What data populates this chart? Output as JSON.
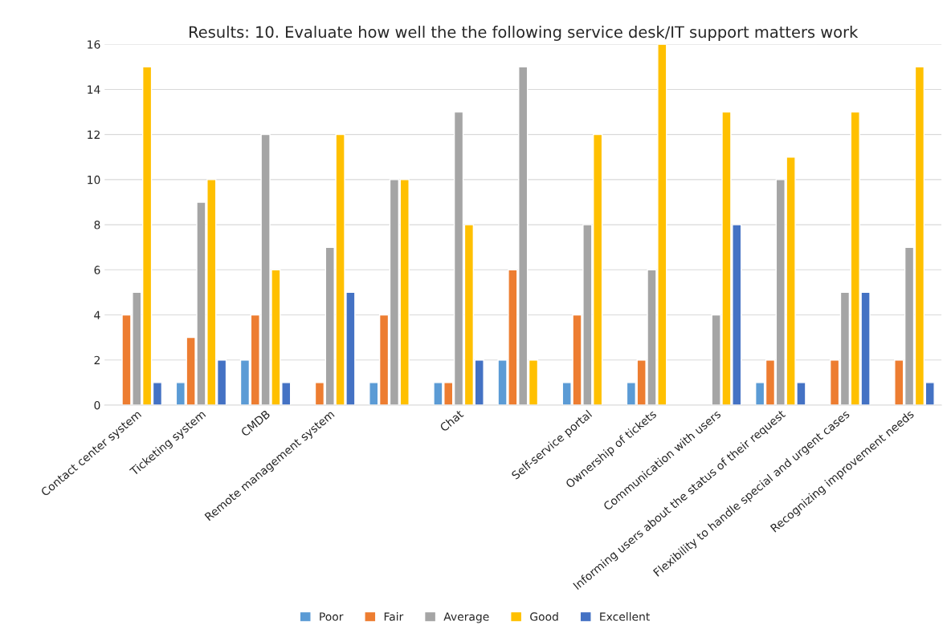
{
  "chart_data": {
    "type": "bar",
    "title": "Results: 10. Evaluate how well the the following service desk/IT support matters work",
    "categories": [
      "Contact center system",
      "Ticketing system",
      "CMDB",
      "Remote management system",
      null,
      "Chat",
      null,
      "Self-service portal",
      "Ownership of tickets",
      "Communication with users",
      "Informing users about the status of their request",
      "Flexibility to handle special and urgent cases",
      "Recognizing improvement needs"
    ],
    "series": [
      {
        "name": "Poor",
        "color": "#5b9bd5",
        "values": [
          null,
          1,
          2,
          null,
          1,
          1,
          2,
          1,
          1,
          null,
          1,
          null,
          null
        ]
      },
      {
        "name": "Fair",
        "color": "#ed7d31",
        "values": [
          4,
          3,
          4,
          1,
          4,
          1,
          6,
          4,
          2,
          null,
          2,
          2,
          2
        ]
      },
      {
        "name": "Average",
        "color": "#a5a5a5",
        "values": [
          5,
          9,
          12,
          7,
          10,
          13,
          15,
          8,
          6,
          4,
          10,
          5,
          7
        ]
      },
      {
        "name": "Good",
        "color": "#ffc000",
        "values": [
          15,
          10,
          6,
          12,
          10,
          8,
          2,
          12,
          16,
          13,
          11,
          13,
          15
        ]
      },
      {
        "name": "Excellent",
        "color": "#4472c4",
        "values": [
          1,
          2,
          1,
          5,
          null,
          2,
          null,
          null,
          null,
          8,
          1,
          5,
          1
        ]
      }
    ],
    "ylim": [
      0,
      16
    ],
    "yticks": [
      0,
      2,
      4,
      6,
      8,
      10,
      12,
      14,
      16
    ],
    "grid": "y",
    "legend": "bottom"
  }
}
